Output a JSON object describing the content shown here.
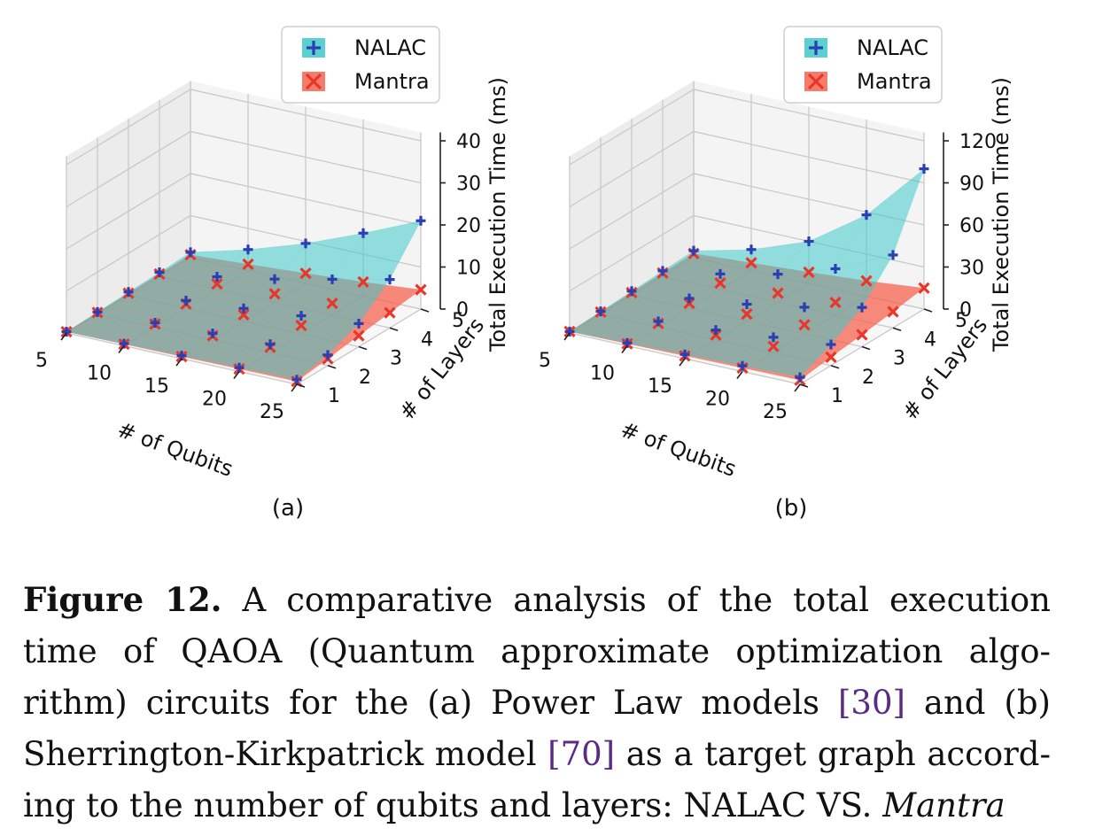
{
  "chart_data": [
    {
      "type": "surface3d",
      "subtitle": "(a)",
      "xlabel": "# of Qubits",
      "ylabel": "# of Layers",
      "zlabel": "Total Execution Time (ms)",
      "x": [
        5,
        10,
        15,
        20,
        25
      ],
      "y": [
        1,
        2,
        3,
        4,
        5
      ],
      "zlim": [
        0,
        40
      ],
      "zticks": [
        0,
        10,
        20,
        30,
        40
      ],
      "legend_position": "top",
      "grid": true,
      "series": [
        {
          "name": "NALAC",
          "marker": "+",
          "color": "#2b3fb5",
          "surface_color": "#40c8c8",
          "values": [
            [
              0.3,
              0.5,
              0.7,
              0.9,
              1.1
            ],
            [
              0.5,
              1.0,
              1.5,
              2.0,
              2.5
            ],
            [
              0.8,
              1.8,
              3.0,
              4.3,
              5.5
            ],
            [
              1.0,
              3.0,
              5.5,
              8.5,
              11.5
            ],
            [
              1.3,
              5.0,
              9.5,
              15.0,
              21.0
            ]
          ]
        },
        {
          "name": "Mantra",
          "marker": "x",
          "color": "#e8372a",
          "surface_color": "#f56450",
          "values": [
            [
              0.3,
              0.4,
              0.5,
              0.6,
              0.7
            ],
            [
              0.4,
              0.7,
              1.0,
              1.3,
              1.6
            ],
            [
              0.5,
              1.0,
              1.5,
              2.0,
              2.6
            ],
            [
              0.6,
              1.3,
              2.0,
              2.8,
              3.6
            ],
            [
              0.7,
              1.5,
              2.4,
              3.4,
              4.6
            ]
          ]
        }
      ]
    },
    {
      "type": "surface3d",
      "subtitle": "(b)",
      "xlabel": "# of Qubits",
      "ylabel": "# of Layers",
      "zlabel": "Total Execution Time (ms)",
      "x": [
        5,
        10,
        15,
        20,
        25
      ],
      "y": [
        1,
        2,
        3,
        4,
        5
      ],
      "zlim": [
        0,
        120
      ],
      "zticks": [
        0,
        30,
        60,
        90,
        120
      ],
      "legend_position": "top",
      "grid": true,
      "series": [
        {
          "name": "NALAC",
          "marker": "+",
          "color": "#2b3fb5",
          "surface_color": "#40c8c8",
          "values": [
            [
              1,
              2,
              3,
              4,
              5
            ],
            [
              2,
              4,
              7,
              11,
              15
            ],
            [
              3,
              7,
              12,
              19,
              28
            ],
            [
              4,
              11,
              20,
              33,
              52
            ],
            [
              5,
              15,
              30,
              58,
              100
            ]
          ]
        },
        {
          "name": "Mantra",
          "marker": "x",
          "color": "#e8372a",
          "surface_color": "#f56450",
          "values": [
            [
              1,
              1.5,
              2,
              2.5,
              3
            ],
            [
              1.5,
              2.5,
              3.5,
              4.5,
              6
            ],
            [
              2,
              3.5,
              5,
              6.5,
              8.5
            ],
            [
              2.5,
              4.5,
              6.5,
              9,
              11.5
            ],
            [
              3,
              5.5,
              8,
              11,
              15
            ]
          ]
        }
      ]
    }
  ],
  "caption": {
    "label": "Figure 12.",
    "text_1": "A comparative analysis of the total execution time of QAOA (Quantum approximate optimization algo- rithm) circuits for the (a) Power Law models",
    "ref_1": "[30]",
    "text_2": "and (b) Sherrington-Kirkpatrick model",
    "ref_2": "[70]",
    "text_3": "as a target graph accord- ing to the number of qubits and layers: NALAC VS.",
    "emph": "Mantra"
  }
}
